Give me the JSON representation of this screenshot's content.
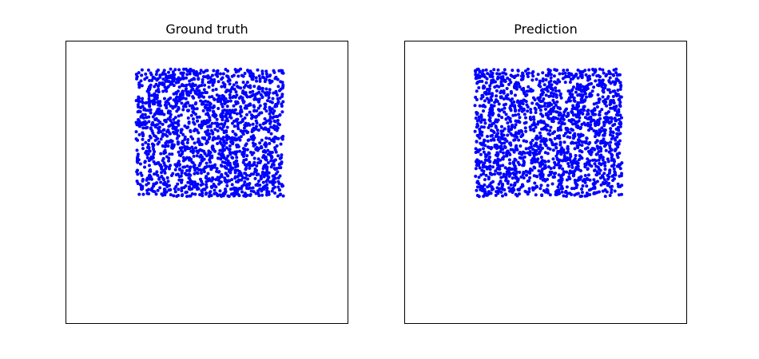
{
  "chart_data": [
    {
      "type": "scatter",
      "title": "Ground truth",
      "xlabel": "",
      "ylabel": "",
      "xlim": [
        0,
        1
      ],
      "ylim": [
        0,
        1
      ],
      "grid": false,
      "ticks": false,
      "point_color": "#0000ff",
      "point_count": 1800,
      "region": {
        "x": [
          0.25,
          0.77
        ],
        "y": [
          0.45,
          0.9
        ]
      }
    },
    {
      "type": "scatter",
      "title": "Prediction",
      "xlabel": "",
      "ylabel": "",
      "xlim": [
        0,
        1
      ],
      "ylim": [
        0,
        1
      ],
      "grid": false,
      "ticks": false,
      "point_color": "#0000ff",
      "point_count": 1800,
      "region": {
        "x": [
          0.25,
          0.77
        ],
        "y": [
          0.45,
          0.9
        ]
      }
    }
  ]
}
